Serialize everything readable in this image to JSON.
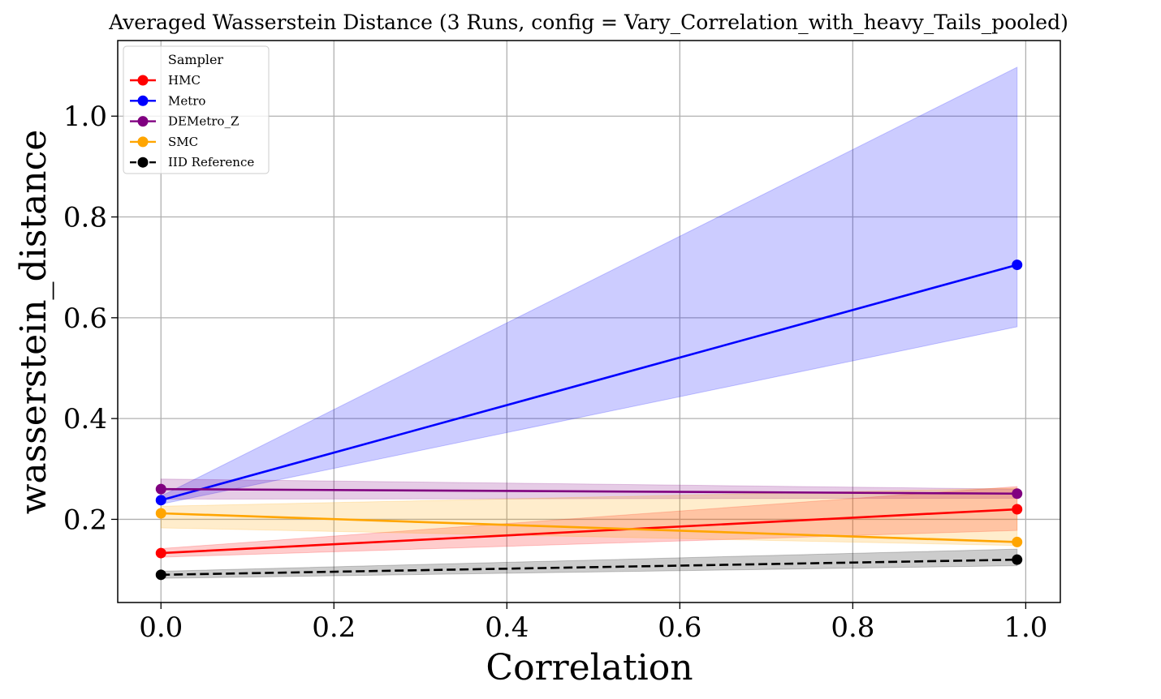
{
  "chart_data": {
    "type": "line",
    "title": "Averaged Wasserstein Distance (3 Runs, config = Vary_Correlation_with_heavy_Tails_pooled)",
    "xlabel": "Correlation",
    "ylabel": "wasserstein_distance",
    "xlim": [
      -0.05,
      1.04
    ],
    "ylim": [
      0.035,
      1.15
    ],
    "xticks": [
      0.0,
      0.2,
      0.4,
      0.6,
      0.8,
      1.0
    ],
    "xtick_labels": [
      "0.0",
      "0.2",
      "0.4",
      "0.6",
      "0.8",
      "1.0"
    ],
    "yticks": [
      0.2,
      0.4,
      0.6,
      0.8,
      1.0
    ],
    "ytick_labels": [
      "0.2",
      "0.4",
      "0.6",
      "0.8",
      "1.0"
    ],
    "grid": true,
    "legend": {
      "title": "Sampler",
      "position": "top-left"
    },
    "x": [
      0.0,
      0.99
    ],
    "series": [
      {
        "name": "HMC",
        "values": [
          0.133,
          0.22
        ],
        "band_lower": [
          0.125,
          0.178
        ],
        "band_upper": [
          0.142,
          0.265
        ],
        "color": "#ff0000",
        "dashed": false
      },
      {
        "name": "Metro",
        "values": [
          0.238,
          0.705
        ],
        "band_lower": [
          0.23,
          0.582
        ],
        "band_upper": [
          0.246,
          1.097
        ],
        "color": "#0000ff",
        "dashed": false
      },
      {
        "name": "DEMetro_Z",
        "values": [
          0.26,
          0.251
        ],
        "band_lower": [
          0.24,
          0.242
        ],
        "band_upper": [
          0.28,
          0.26
        ],
        "color": "#800080",
        "dashed": false
      },
      {
        "name": "SMC",
        "values": [
          0.212,
          0.155
        ],
        "band_lower": [
          0.183,
          0.148
        ],
        "band_upper": [
          0.226,
          0.262
        ],
        "color": "#ffa500",
        "dashed": false
      },
      {
        "name": "IID Reference",
        "values": [
          0.09,
          0.12
        ],
        "band_lower": [
          0.083,
          0.108
        ],
        "band_upper": [
          0.097,
          0.141
        ],
        "color": "#000000",
        "dashed": true
      }
    ]
  }
}
